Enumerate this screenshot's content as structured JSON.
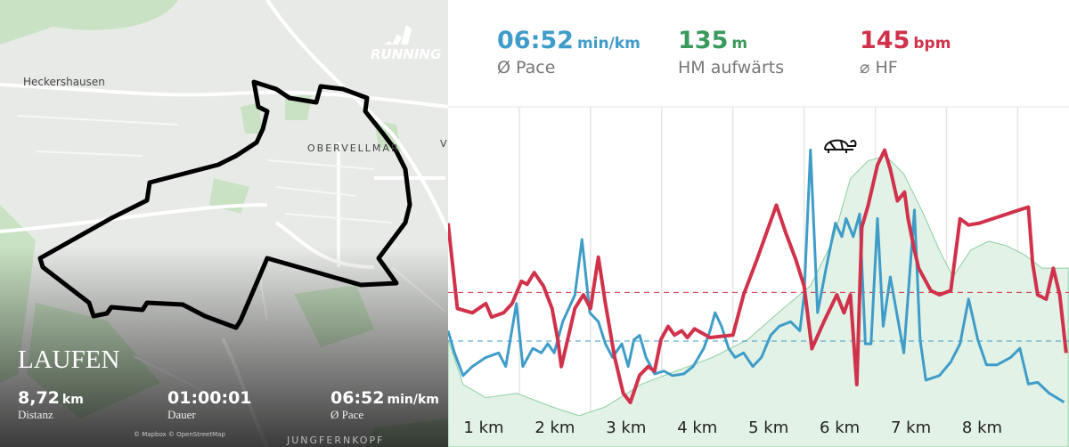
{
  "map": {
    "brand": "RUNNING",
    "places": [
      "Heckershausen",
      "OBERVELLMAR",
      "V",
      "JUNGFERNKOPF"
    ],
    "attribution": "© Mapbox © OpenStreetMap",
    "activity": "LAUFEN",
    "stats": [
      {
        "value": "8,72",
        "unit": "km",
        "label": "Distanz"
      },
      {
        "value": "01:00:01",
        "label": "Dauer"
      },
      {
        "value": "06:52",
        "unit": "min/km",
        "label": "Ø Pace"
      }
    ]
  },
  "summary": [
    {
      "value": "06:52",
      "unit": "min/km",
      "label": "Ø Pace",
      "color": "#3f9cc8"
    },
    {
      "value": "135",
      "unit": "m",
      "label": "HM aufwärts",
      "color": "#3a9a5c"
    },
    {
      "value": "145",
      "unit": "bpm",
      "label": "⌀ HF",
      "color": "#d0324b"
    }
  ],
  "chart_data": {
    "type": "line",
    "xlim": [
      0,
      8.72
    ],
    "xticks": [
      {
        "value": 1,
        "label": "1 km"
      },
      {
        "value": 2,
        "label": "2 km"
      },
      {
        "value": 3,
        "label": "3 km"
      },
      {
        "value": 4,
        "label": "4 km"
      },
      {
        "value": 5,
        "label": "5 km"
      },
      {
        "value": 6,
        "label": "6 km"
      },
      {
        "value": 7,
        "label": "7 km"
      },
      {
        "value": 8,
        "label": "8 km"
      }
    ],
    "grid": true,
    "series": [
      {
        "color": "#8fcfa3",
        "fill": "#e2f2e6",
        "ylim": [
          200,
          300
        ],
        "x": [
          0,
          0.21,
          0.53,
          0.96,
          1.46,
          1.84,
          2.21,
          2.71,
          3.21,
          3.71,
          4.21,
          4.71,
          5.09,
          5.4,
          5.65,
          5.9,
          6.15,
          6.4,
          6.65,
          6.9,
          7.09,
          7.34,
          7.59,
          7.84,
          8.09,
          8.34,
          8.71
        ],
        "values": [
          231.6,
          218.4,
          214.5,
          215.8,
          211.8,
          209.2,
          211.8,
          218.4,
          222.4,
          226.3,
          231.6,
          240.8,
          247.4,
          260.5,
          278.9,
          284.2,
          285.5,
          280.3,
          269.7,
          257.9,
          250.0,
          257.9,
          260.5,
          259.2,
          256.6,
          252.6,
          252.6
        ]
      },
      {
        "color": "#3f9cc8",
        "ylim": [
          5,
          11
        ],
        "avg": 6.87,
        "x": [
          0,
          0.09,
          0.21,
          0.34,
          0.53,
          0.71,
          0.81,
          0.96,
          1.05,
          1.19,
          1.31,
          1.4,
          1.49,
          1.61,
          1.78,
          1.88,
          1.99,
          2.11,
          2.21,
          2.31,
          2.44,
          2.53,
          2.61,
          2.69,
          2.78,
          2.9,
          3.03,
          3.15,
          3.31,
          3.44,
          3.59,
          3.68,
          3.75,
          3.84,
          3.94,
          4.03,
          4.15,
          4.28,
          4.4,
          4.53,
          4.65,
          4.81,
          4.94,
          5.0,
          5.09,
          5.19,
          5.31,
          5.44,
          5.53,
          5.59,
          5.69,
          5.78,
          5.86,
          5.94,
          6.03,
          6.11,
          6.21,
          6.4,
          6.55,
          6.63,
          6.71,
          6.9,
          7.06,
          7.19,
          7.31,
          7.44,
          7.56,
          7.71,
          7.9,
          8.03,
          8.15,
          8.28,
          8.44,
          8.65
        ],
        "values": [
          7.05,
          6.66,
          6.26,
          6.42,
          6.58,
          6.66,
          6.42,
          7.53,
          6.42,
          6.74,
          6.66,
          6.82,
          6.66,
          7.21,
          7.68,
          8.66,
          7.37,
          7.21,
          6.82,
          6.58,
          6.82,
          6.42,
          6.89,
          6.97,
          6.58,
          6.29,
          6.34,
          6.26,
          6.29,
          6.42,
          6.74,
          7.05,
          7.37,
          7.13,
          6.74,
          6.58,
          6.66,
          6.42,
          6.58,
          6.97,
          7.13,
          7.21,
          7.05,
          7.68,
          10.24,
          7.37,
          8.16,
          8.95,
          8.71,
          9.03,
          8.71,
          9.11,
          6.82,
          6.82,
          9.03,
          7.13,
          8.0,
          6.66,
          9.18,
          6.89,
          6.18,
          6.26,
          6.5,
          6.82,
          7.61,
          6.89,
          6.45,
          6.45,
          6.58,
          6.74,
          6.11,
          6.14,
          5.95,
          5.79
        ]
      },
      {
        "color": "#d0324b",
        "ylim": [
          120,
          175
        ],
        "avg": 145,
        "x": [
          0,
          0.13,
          0.34,
          0.53,
          0.61,
          0.78,
          0.9,
          1.03,
          1.11,
          1.21,
          1.34,
          1.46,
          1.54,
          1.59,
          1.68,
          1.78,
          1.9,
          2.0,
          2.11,
          2.21,
          2.34,
          2.46,
          2.56,
          2.69,
          2.81,
          2.9,
          2.99,
          3.09,
          3.18,
          3.28,
          3.36,
          3.46,
          3.68,
          4.0,
          4.15,
          4.34,
          4.61,
          4.74,
          4.88,
          5.0,
          5.11,
          5.28,
          5.46,
          5.56,
          5.65,
          5.74,
          5.81,
          5.9,
          6.03,
          6.13,
          6.21,
          6.31,
          6.41,
          6.46,
          6.55,
          6.61,
          6.78,
          6.9,
          7.06,
          7.19,
          7.31,
          7.46,
          8.15,
          8.21,
          8.28,
          8.4,
          8.5,
          8.59,
          8.68
        ],
        "values": [
          156.2,
          142.4,
          141.7,
          143.2,
          141.0,
          141.7,
          143.2,
          146.8,
          146.3,
          148.2,
          146.0,
          142.4,
          137.4,
          133.0,
          137.4,
          142.4,
          144.6,
          142.4,
          150.7,
          143.2,
          134.5,
          128.7,
          127.2,
          131.6,
          133.0,
          132.3,
          137.4,
          139.5,
          138.1,
          138.8,
          137.7,
          139.1,
          137.7,
          138.1,
          144.6,
          150.4,
          159.1,
          154.7,
          150.4,
          146.0,
          135.9,
          140.3,
          144.6,
          141.7,
          144.6,
          130.1,
          155.5,
          159.1,
          165.6,
          168.0,
          164.9,
          159.8,
          161.2,
          156.9,
          151.8,
          148.9,
          145.3,
          144.6,
          145.3,
          156.9,
          155.9,
          156.2,
          158.8,
          149.7,
          144.6,
          143.9,
          148.9,
          144.6,
          135.2
        ]
      }
    ]
  }
}
